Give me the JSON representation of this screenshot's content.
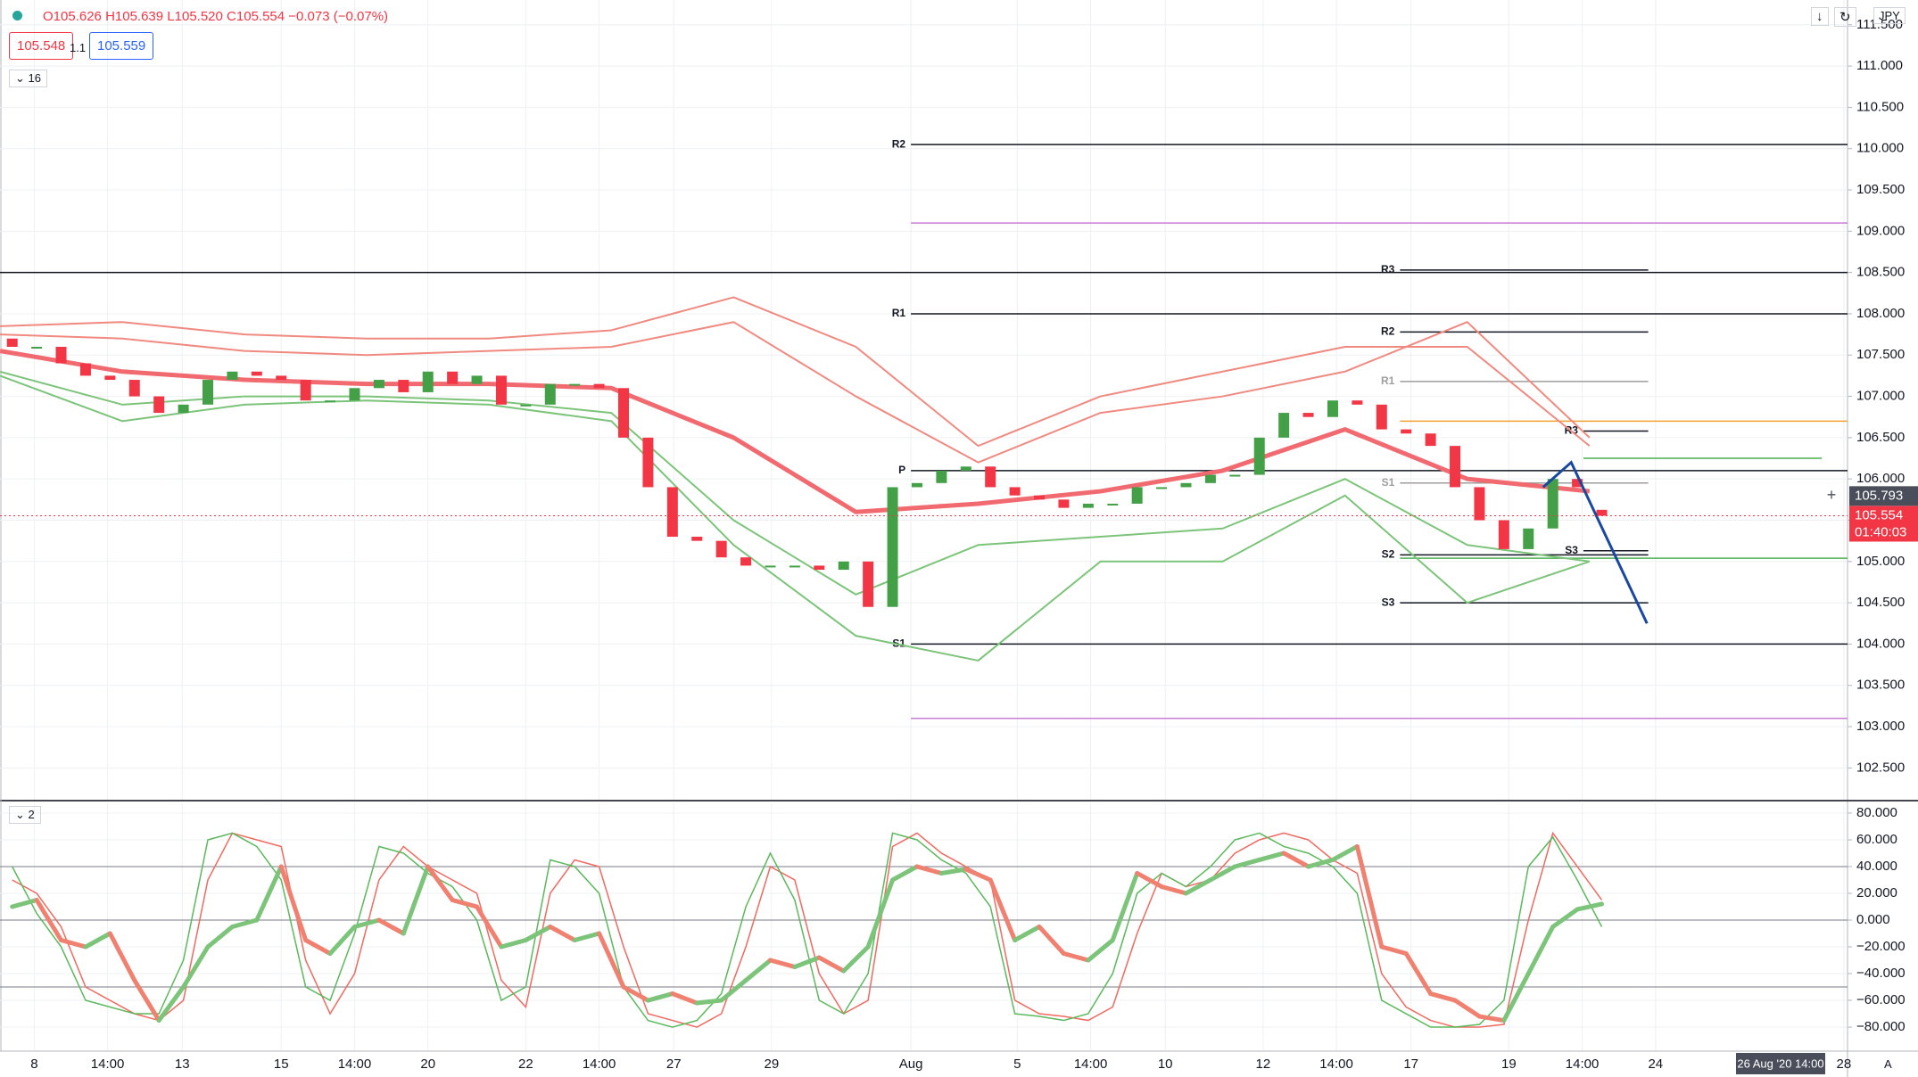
{
  "header": {
    "ohlc": [
      "O105.626",
      "H105.639",
      "L105.520",
      "C105.554"
    ],
    "change": "−0.073 (−0.07%)",
    "bid": "105.548",
    "spread": "1.1",
    "ask": "105.559",
    "main_pane_label": "16",
    "osc_pane_label": "2",
    "currency": "JPY",
    "scale_mode": "A"
  },
  "chart_data": [
    {
      "type": "candlestick",
      "up_color": "#43a047",
      "down_color": "#f23645",
      "x": [
        1,
        3,
        5,
        7,
        9,
        11,
        13,
        15,
        17,
        19,
        21,
        23,
        25,
        27,
        29,
        31,
        33,
        35,
        37,
        39,
        41,
        43,
        45,
        47,
        49,
        51,
        53,
        55,
        57,
        59,
        61,
        63,
        65,
        67,
        69,
        71,
        73,
        75,
        77,
        79,
        81,
        83,
        85,
        87,
        89,
        91,
        93,
        95,
        97,
        99,
        101,
        103,
        105,
        107,
        109,
        111,
        113,
        115,
        117,
        119,
        121,
        123,
        125,
        127,
        129,
        131
      ],
      "open": [
        107.7,
        107.6,
        107.6,
        107.4,
        107.25,
        107.2,
        107.0,
        106.8,
        106.9,
        107.2,
        107.3,
        107.25,
        107.2,
        106.95,
        106.95,
        107.1,
        107.2,
        107.05,
        107.3,
        107.15,
        107.25,
        106.9,
        106.9,
        107.15,
        107.15,
        107.1,
        106.5,
        105.9,
        105.3,
        105.25,
        105.05,
        104.95,
        104.95,
        104.95,
        104.9,
        105.0,
        104.45,
        105.9,
        105.95,
        106.1,
        106.15,
        105.9,
        105.8,
        105.75,
        105.65,
        105.7,
        105.7,
        105.9,
        105.9,
        105.95,
        106.05,
        106.05,
        106.5,
        106.8,
        106.75,
        106.95,
        106.9,
        106.6,
        106.55,
        106.4,
        105.9,
        105.5,
        105.15,
        105.4,
        106.0,
        105.626
      ],
      "close": [
        107.6,
        107.6,
        107.4,
        107.25,
        107.2,
        107.0,
        106.8,
        106.9,
        107.2,
        107.3,
        107.25,
        107.2,
        106.95,
        106.95,
        107.1,
        107.2,
        107.05,
        107.3,
        107.15,
        107.25,
        106.9,
        106.9,
        107.15,
        107.15,
        107.1,
        106.5,
        105.9,
        105.3,
        105.25,
        105.05,
        104.95,
        104.95,
        104.95,
        104.9,
        105.0,
        104.45,
        105.9,
        105.95,
        106.1,
        106.15,
        105.9,
        105.8,
        105.75,
        105.65,
        105.7,
        105.7,
        105.9,
        105.9,
        105.95,
        106.05,
        106.05,
        106.5,
        106.8,
        106.75,
        106.95,
        106.9,
        106.6,
        106.55,
        106.4,
        105.9,
        105.5,
        105.15,
        105.4,
        106.0,
        105.9,
        105.554
      ],
      "xlim": [
        0,
        151.1
      ],
      "ylim": [
        102.115,
        111.8
      ],
      "yticks": [
        {
          "value": 102.5,
          "label": "102.500"
        },
        {
          "value": 103,
          "label": "103.000"
        },
        {
          "value": 103.5,
          "label": "103.500"
        },
        {
          "value": 104,
          "label": "104.000"
        },
        {
          "value": 104.5,
          "label": "104.500"
        },
        {
          "value": 105,
          "label": "105.000"
        },
        {
          "value": 105.5,
          "label": "105.500"
        },
        {
          "value": 106,
          "label": "106.000"
        },
        {
          "value": 106.5,
          "label": "106.500"
        },
        {
          "value": 107,
          "label": "107.000"
        },
        {
          "value": 107.5,
          "label": "107.500"
        },
        {
          "value": 108,
          "label": "108.000"
        },
        {
          "value": 108.5,
          "label": "108.500"
        },
        {
          "value": 109,
          "label": "109.000"
        },
        {
          "value": 109.5,
          "label": "109.500"
        },
        {
          "value": 110,
          "label": "110.000"
        },
        {
          "value": 110.5,
          "label": "110.500"
        },
        {
          "value": 111,
          "label": "111.000"
        },
        {
          "value": 111.5,
          "label": "111.500"
        }
      ],
      "xticks": [
        {
          "value": 2.8,
          "label": "8"
        },
        {
          "value": 8.8,
          "label": "14:00"
        },
        {
          "value": 14.9,
          "label": "13"
        },
        {
          "value": 23,
          "label": "15"
        },
        {
          "value": 29,
          "label": "14:00"
        },
        {
          "value": 35,
          "label": "20"
        },
        {
          "value": 43,
          "label": "22"
        },
        {
          "value": 49,
          "label": "14:00"
        },
        {
          "value": 55.1,
          "label": "27"
        },
        {
          "value": 63.1,
          "label": "29"
        },
        {
          "value": 74.5,
          "label": "Aug"
        },
        {
          "value": 83.2,
          "label": "5"
        },
        {
          "value": 89.2,
          "label": "14:00"
        },
        {
          "value": 95.3,
          "label": "10"
        },
        {
          "value": 103.3,
          "label": "12"
        },
        {
          "value": 109.3,
          "label": "14:00"
        },
        {
          "value": 115.4,
          "label": "17"
        },
        {
          "value": 123.4,
          "label": "19"
        },
        {
          "value": 129.4,
          "label": "14:00"
        },
        {
          "value": 135.4,
          "label": "24"
        },
        {
          "value": 150.8,
          "label": "28"
        }
      ],
      "grid": true,
      "overlay_x": [
        0,
        10,
        20,
        30,
        40,
        50,
        60,
        70,
        80,
        90,
        100,
        110,
        120,
        130
      ],
      "overlays": [
        {
          "color": "#f08a80",
          "thick": false,
          "values": [
            107.85,
            107.9,
            107.75,
            107.7,
            107.7,
            107.8,
            108.2,
            107.6,
            106.4,
            107.0,
            107.3,
            107.6,
            107.6,
            106.4
          ]
        },
        {
          "color": "#f08a80",
          "thick": false,
          "values": [
            107.75,
            107.7,
            107.55,
            107.5,
            107.55,
            107.6,
            107.9,
            107.0,
            106.2,
            106.8,
            107.0,
            107.3,
            107.9,
            106.5
          ]
        },
        {
          "color": "#f06a70",
          "thick": true,
          "values": [
            107.55,
            107.3,
            107.2,
            107.15,
            107.15,
            107.1,
            106.5,
            105.6,
            105.7,
            105.85,
            106.1,
            106.6,
            106.0,
            105.85
          ]
        },
        {
          "color": "#7cc47a",
          "thick": false,
          "values": [
            107.3,
            106.9,
            107.0,
            107.0,
            106.95,
            106.8,
            105.5,
            104.6,
            105.2,
            105.3,
            105.4,
            106.0,
            105.2,
            105.0
          ]
        },
        {
          "color": "#7cc47a",
          "thick": false,
          "values": [
            107.25,
            106.7,
            106.9,
            106.95,
            106.9,
            106.7,
            105.2,
            104.1,
            103.8,
            105.0,
            105.0,
            105.8,
            104.5,
            105.0
          ]
        }
      ],
      "levels": [
        {
          "value": 108.5,
          "from": 0,
          "to": 151.1,
          "color": "#131722"
        },
        {
          "label": "R2",
          "value": 110.05,
          "from": 74.5,
          "to": 151.1,
          "color": "#131722"
        },
        {
          "value": 109.1,
          "from": 74.5,
          "to": 151.1,
          "color": "#c77dd4"
        },
        {
          "label": "R1",
          "value": 108.0,
          "from": 74.5,
          "to": 151.1,
          "color": "#131722"
        },
        {
          "label": "P",
          "value": 106.1,
          "from": 74.5,
          "to": 151.1,
          "color": "#131722"
        },
        {
          "label": "S1",
          "value": 104.0,
          "from": 74.5,
          "to": 151.1,
          "color": "#131722"
        },
        {
          "value": 103.1,
          "from": 74.5,
          "to": 151.1,
          "color": "#c77dd4"
        },
        {
          "label": "R3",
          "value": 108.53,
          "from": 114.5,
          "to": 134.8,
          "color": "#131722"
        },
        {
          "label": "R2",
          "value": 107.78,
          "from": 114.5,
          "to": 134.8,
          "color": "#131722"
        },
        {
          "label": "R1",
          "value": 107.18,
          "from": 114.5,
          "to": 134.8,
          "color": "#9e9e9e"
        },
        {
          "value": 106.7,
          "from": 114.5,
          "to": 151.1,
          "color": "#f0a030"
        },
        {
          "label": "S1",
          "value": 105.95,
          "from": 114.5,
          "to": 134.8,
          "color": "#9e9e9e"
        },
        {
          "label": "S2",
          "value": 105.08,
          "from": 114.5,
          "to": 134.8,
          "color": "#131722"
        },
        {
          "label": "S3",
          "value": 104.5,
          "from": 114.5,
          "to": 134.8,
          "color": "#131722"
        },
        {
          "label": "R3",
          "value": 106.58,
          "from": 129.5,
          "to": 134.8,
          "color": "#131722"
        },
        {
          "label": "S3",
          "value": 105.13,
          "from": 129.5,
          "to": 134.8,
          "color": "#131722"
        },
        {
          "value": 106.25,
          "from": 129.5,
          "to": 149,
          "color": "#4caf50"
        },
        {
          "value": 105.04,
          "from": 114.5,
          "to": 151.1,
          "color": "#4caf50"
        }
      ],
      "drawing": {
        "color": "#1848a0",
        "x": [
          126.2,
          128.5,
          134.7
        ],
        "values": [
          105.9,
          106.2,
          104.25
        ]
      },
      "last_price": {
        "value": 105.554,
        "countdown": "01:40:03",
        "color": "#f23645"
      },
      "crosshair": {
        "value": 105.793,
        "time": "26 Aug '20  14:00"
      }
    },
    {
      "type": "line",
      "x": [
        1,
        3,
        5,
        7,
        9,
        11,
        13,
        15,
        17,
        19,
        21,
        23,
        25,
        27,
        29,
        31,
        33,
        35,
        37,
        39,
        41,
        43,
        45,
        47,
        49,
        51,
        53,
        55,
        57,
        59,
        61,
        63,
        65,
        67,
        69,
        71,
        73,
        75,
        77,
        79,
        81,
        83,
        85,
        87,
        89,
        91,
        93,
        95,
        97,
        99,
        101,
        103,
        105,
        107,
        109,
        111,
        113,
        115,
        117,
        119,
        121,
        123,
        125,
        127,
        129,
        131
      ],
      "xlim": [
        0,
        151.1
      ],
      "ylim": [
        -97.3,
        87.3
      ],
      "yticks": [
        {
          "value": 80,
          "label": "80.000"
        },
        {
          "value": 60,
          "label": "60.000"
        },
        {
          "value": 40,
          "label": "40.000"
        },
        {
          "value": 20,
          "label": "20.000"
        },
        {
          "value": 0,
          "label": "0.000"
        },
        {
          "value": -20,
          "label": "−20.000"
        },
        {
          "value": -40,
          "label": "−40.000"
        },
        {
          "value": -60,
          "label": "−60.000"
        },
        {
          "value": -80,
          "label": "−80.000"
        }
      ],
      "hlines": [
        40,
        0,
        -50
      ],
      "series": [
        {
          "color": "#ef6a60",
          "values": [
            30,
            20,
            -5,
            -50,
            -60,
            -70,
            -75,
            -60,
            30,
            65,
            60,
            55,
            -30,
            -70,
            -40,
            30,
            55,
            40,
            30,
            20,
            -45,
            -65,
            20,
            45,
            40,
            -20,
            -70,
            -75,
            -80,
            -70,
            -20,
            40,
            30,
            -40,
            -70,
            -60,
            55,
            65,
            50,
            40,
            30,
            -60,
            -70,
            -72,
            -75,
            -65,
            -10,
            35,
            25,
            30,
            50,
            60,
            65,
            60,
            45,
            35,
            -40,
            -65,
            -75,
            -80,
            -80,
            -78,
            0,
            65,
            40,
            15
          ]
        },
        {
          "color": "#5cb85c",
          "values": [
            40,
            5,
            -20,
            -60,
            -65,
            -70,
            -70,
            -30,
            60,
            65,
            55,
            30,
            -50,
            -60,
            -10,
            55,
            50,
            35,
            25,
            0,
            -60,
            -50,
            45,
            40,
            20,
            -50,
            -75,
            -80,
            -75,
            -55,
            10,
            50,
            15,
            -60,
            -70,
            -40,
            65,
            60,
            45,
            35,
            10,
            -70,
            -72,
            -75,
            -70,
            -40,
            20,
            35,
            25,
            40,
            60,
            65,
            55,
            50,
            40,
            20,
            -60,
            -70,
            -80,
            -80,
            -78,
            -60,
            40,
            62,
            30,
            -5
          ]
        },
        {
          "thick": true,
          "up_color": "#7cc47a",
          "down_color": "#f08070",
          "values": [
            10,
            15,
            -15,
            -20,
            -10,
            -45,
            -75,
            -50,
            -20,
            -5,
            0,
            40,
            -15,
            -25,
            -5,
            0,
            -10,
            40,
            15,
            10,
            -20,
            -15,
            -5,
            -15,
            -10,
            -50,
            -60,
            -55,
            -62,
            -60,
            -45,
            -30,
            -35,
            -28,
            -38,
            -20,
            30,
            40,
            35,
            38,
            30,
            -15,
            -5,
            -25,
            -30,
            -15,
            35,
            25,
            20,
            30,
            40,
            45,
            50,
            40,
            45,
            55,
            -20,
            -25,
            -55,
            -60,
            -72,
            -75,
            -40,
            -5,
            8,
            12
          ]
        }
      ]
    }
  ]
}
